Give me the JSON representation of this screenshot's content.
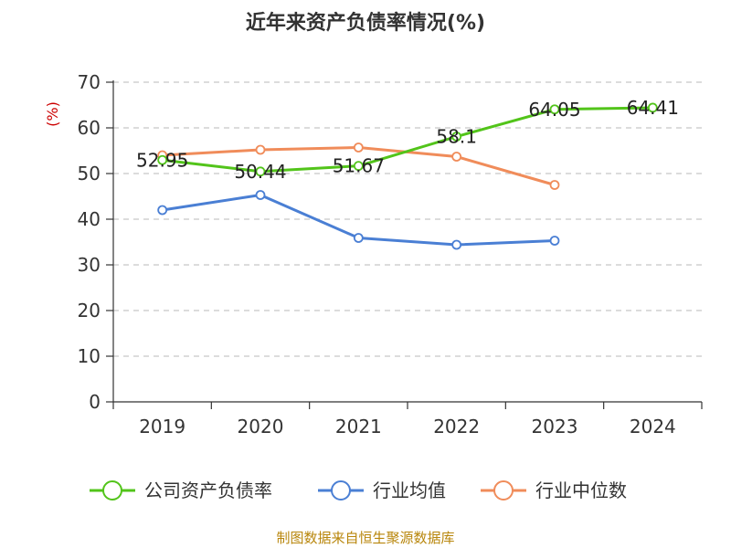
{
  "chart_data": {
    "type": "line",
    "title": "近年来资产负债率情况(%)",
    "ylabel": "(%)",
    "categories": [
      "2019",
      "2020",
      "2021",
      "2022",
      "2023",
      "2024"
    ],
    "ylim": [
      0,
      70
    ],
    "yticks": [
      0,
      10,
      20,
      30,
      40,
      50,
      60,
      70
    ],
    "grid": "horizontal-dashed",
    "legend_position": "bottom",
    "series": [
      {
        "name": "公司资产负债率",
        "color": "#52c41a",
        "values": [
          52.95,
          50.44,
          51.67,
          58.1,
          64.05,
          64.41
        ],
        "labels": [
          "52.95",
          "50.44",
          "51.67",
          "58.1",
          "64.05",
          "64.41"
        ]
      },
      {
        "name": "行业均值",
        "color": "#4a7fd4",
        "values": [
          42.0,
          45.3,
          35.9,
          34.4,
          35.3,
          null
        ]
      },
      {
        "name": "行业中位数",
        "color": "#f08c5a",
        "values": [
          54.0,
          55.2,
          55.7,
          53.7,
          47.5,
          null
        ]
      }
    ]
  },
  "footer": {
    "source": "制图数据来自恒生聚源数据库"
  }
}
